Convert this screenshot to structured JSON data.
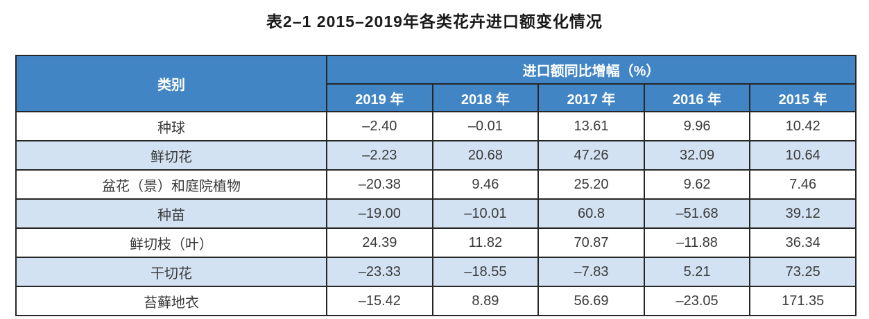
{
  "title": "表2–1 2015–2019年各类花卉进口额变化情况",
  "table": {
    "category_header": "类别",
    "group_header": "进口额同比增幅（%）",
    "year_headers": [
      "2019 年",
      "2018 年",
      "2017 年",
      "2016 年",
      "2015 年"
    ],
    "rows": [
      {
        "category": "种球",
        "values": [
          "–2.40",
          "–0.01",
          "13.61",
          "9.96",
          "10.42"
        ]
      },
      {
        "category": "鲜切花",
        "values": [
          "–2.23",
          "20.68",
          "47.26",
          "32.09",
          "10.64"
        ]
      },
      {
        "category": "盆花（景）和庭院植物",
        "values": [
          "–20.38",
          "9.46",
          "25.20",
          "9.62",
          "7.46"
        ]
      },
      {
        "category": "种苗",
        "values": [
          "–19.00",
          "–10.01",
          "60.8",
          "–51.68",
          "39.12"
        ]
      },
      {
        "category": "鲜切枝（叶）",
        "values": [
          "24.39",
          "11.82",
          "70.87",
          "–11.88",
          "36.34"
        ]
      },
      {
        "category": "干切花",
        "values": [
          "–23.33",
          "–18.55",
          "–7.83",
          "5.21",
          "73.25"
        ]
      },
      {
        "category": "苔藓地衣",
        "values": [
          "–15.42",
          "8.89",
          "56.69",
          "–23.05",
          "171.35"
        ]
      }
    ]
  },
  "colors": {
    "header_bg": "#4285C4",
    "header_text": "#FFFFFF",
    "alt_row_bg": "#D3E2F2",
    "border": "#262626",
    "body_text": "#3A3A3A",
    "title_text": "#1A1A1A"
  }
}
